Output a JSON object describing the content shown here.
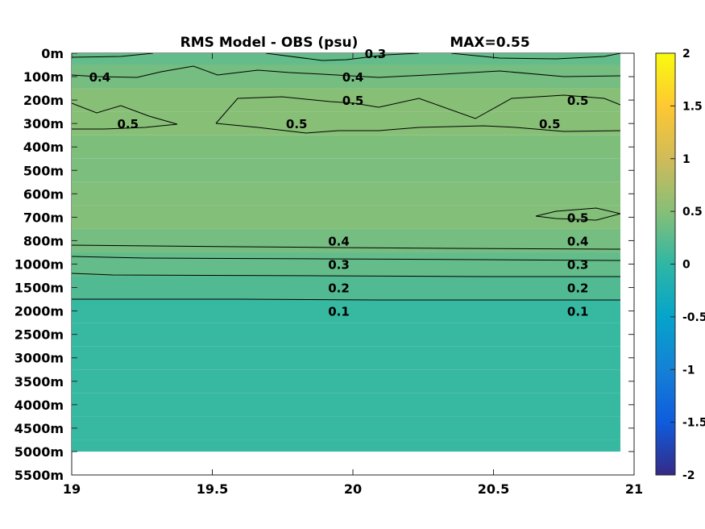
{
  "chart_data": {
    "type": "heatmap",
    "title": "RMS Model - OBS (psu)",
    "max_label": "MAX=0.55",
    "x_ticks": [
      "19",
      "19.5",
      "20",
      "20.5",
      "21"
    ],
    "xlim": [
      19,
      21
    ],
    "y_ticks": [
      "0m",
      "100m",
      "200m",
      "300m",
      "400m",
      "500m",
      "600m",
      "700m",
      "800m",
      "1000m",
      "1500m",
      "2000m",
      "2500m",
      "3000m",
      "3500m",
      "4000m",
      "4500m",
      "5000m",
      "5500m"
    ],
    "colorbar": {
      "range": [
        -2,
        2
      ],
      "ticks": [
        "2",
        "1.5",
        "1",
        "0.5",
        "0",
        "-0.5",
        "-1",
        "-1.5",
        "-2"
      ],
      "colormap": "parula",
      "colors": [
        "#352a87",
        "#0f5cdd",
        "#1481d6",
        "#06a4ca",
        "#2eb7a4",
        "#87bf77",
        "#d1bb59",
        "#fec832",
        "#f9fb0e"
      ]
    },
    "depth_rows": [
      {
        "depth": "0m",
        "value": 0.3
      },
      {
        "depth": "100m",
        "value": 0.4
      },
      {
        "depth": "200m",
        "value": 0.5
      },
      {
        "depth": "300m",
        "value": 0.5
      },
      {
        "depth": "400m",
        "value": 0.45
      },
      {
        "depth": "500m",
        "value": 0.43
      },
      {
        "depth": "600m",
        "value": 0.47
      },
      {
        "depth": "700m",
        "value": 0.48
      },
      {
        "depth": "800m",
        "value": 0.4
      },
      {
        "depth": "1000m",
        "value": 0.3
      },
      {
        "depth": "1500m",
        "value": 0.2
      },
      {
        "depth": "2000m",
        "value": 0.05
      },
      {
        "depth": "2500m",
        "value": 0.05
      },
      {
        "depth": "3000m",
        "value": 0.05
      },
      {
        "depth": "3500m",
        "value": 0.05
      },
      {
        "depth": "4000m",
        "value": 0.05
      },
      {
        "depth": "4500m",
        "value": 0.05
      },
      {
        "depth": "5000m",
        "value": 0.05
      }
    ],
    "contour_labels": [
      {
        "text": "0.3",
        "x": 20.08,
        "depth": "0m"
      },
      {
        "text": "0.4",
        "x": 19.1,
        "depth": "100m"
      },
      {
        "text": "0.4",
        "x": 20.0,
        "depth": "100m"
      },
      {
        "text": "0.5",
        "x": 20.0,
        "depth": "200m"
      },
      {
        "text": "0.5",
        "x": 20.8,
        "depth": "200m"
      },
      {
        "text": "0.5",
        "x": 19.2,
        "depth": "300m"
      },
      {
        "text": "0.5",
        "x": 19.8,
        "depth": "300m"
      },
      {
        "text": "0.5",
        "x": 20.7,
        "depth": "300m"
      },
      {
        "text": "0.5",
        "x": 20.8,
        "depth": "700m"
      },
      {
        "text": "0.4",
        "x": 19.95,
        "depth": "800m"
      },
      {
        "text": "0.4",
        "x": 20.8,
        "depth": "800m"
      },
      {
        "text": "0.3",
        "x": 19.95,
        "depth": "1000m"
      },
      {
        "text": "0.3",
        "x": 20.8,
        "depth": "1000m"
      },
      {
        "text": "0.2",
        "x": 19.95,
        "depth": "1500m"
      },
      {
        "text": "0.2",
        "x": 20.8,
        "depth": "1500m"
      },
      {
        "text": "0.1",
        "x": 19.95,
        "depth": "2000m"
      },
      {
        "text": "0.1",
        "x": 20.8,
        "depth": "2000m"
      }
    ]
  }
}
